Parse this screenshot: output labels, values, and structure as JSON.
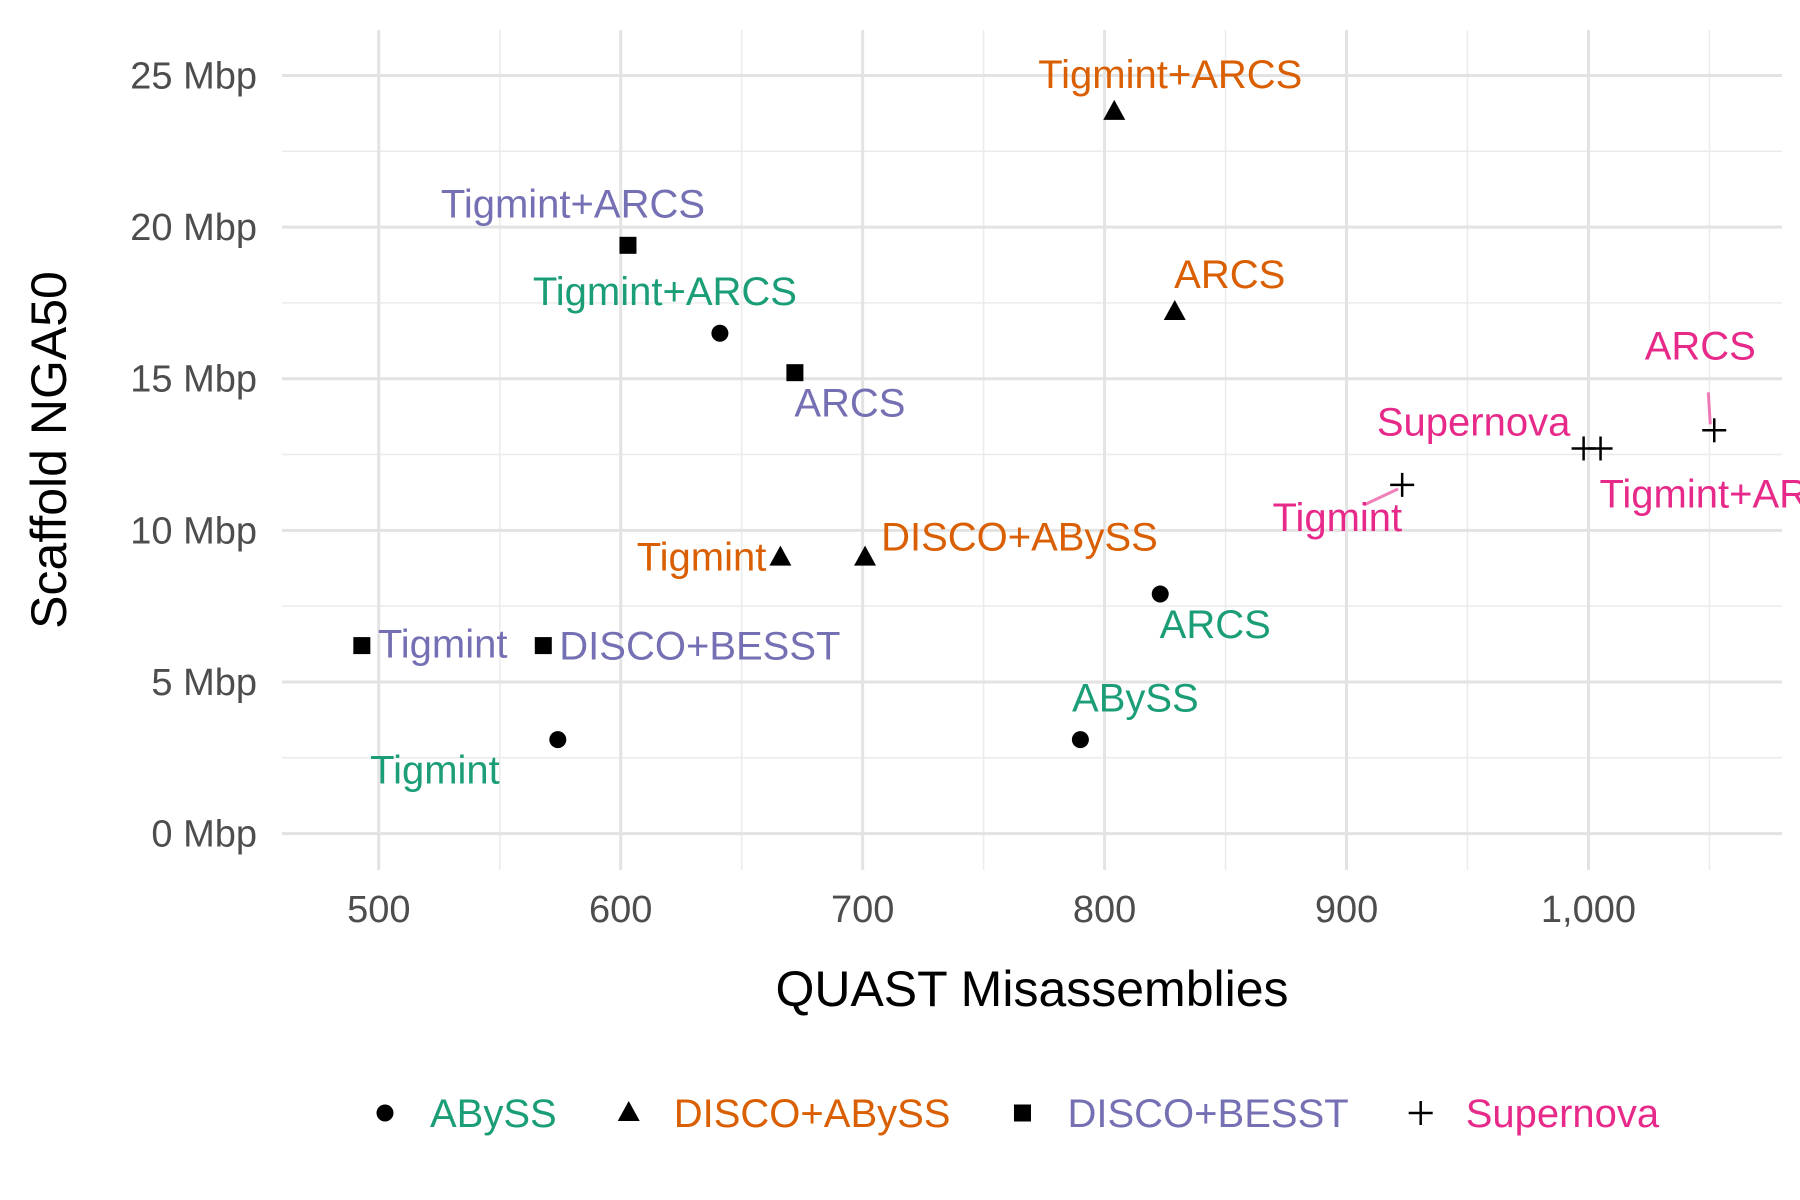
{
  "chart_data": {
    "type": "scatter",
    "xlabel": "QUAST Misassemblies",
    "ylabel": "Scaffold NGA50",
    "xlim": [
      460,
      1080
    ],
    "ylim": [
      -1.2,
      26.5
    ],
    "x_ticks": [
      {
        "value": 500,
        "label": "500"
      },
      {
        "value": 600,
        "label": "600"
      },
      {
        "value": 700,
        "label": "700"
      },
      {
        "value": 800,
        "label": "800"
      },
      {
        "value": 900,
        "label": "900"
      },
      {
        "value": 1000,
        "label": "1,000"
      }
    ],
    "y_ticks": [
      {
        "value": 0,
        "label": "0 Mbp"
      },
      {
        "value": 5,
        "label": "5 Mbp"
      },
      {
        "value": 10,
        "label": "10 Mbp"
      },
      {
        "value": 15,
        "label": "15 Mbp"
      },
      {
        "value": 20,
        "label": "20 Mbp"
      },
      {
        "value": 25,
        "label": "25 Mbp"
      }
    ],
    "grid": true,
    "legend_position": "bottom",
    "series": [
      {
        "name": "ABySS",
        "shape": "circle",
        "color": "#1b9e77",
        "points": [
          {
            "x": 574,
            "y": 3.1,
            "label": "Tigmint"
          },
          {
            "x": 790,
            "y": 3.1,
            "label": "ABySS"
          },
          {
            "x": 641,
            "y": 16.5,
            "label": "Tigmint+ARCS"
          },
          {
            "x": 823,
            "y": 7.9,
            "label": "ARCS"
          }
        ]
      },
      {
        "name": "DISCO+ABySS",
        "shape": "triangle",
        "color": "#d95f02",
        "points": [
          {
            "x": 666,
            "y": 9.1,
            "label": "Tigmint"
          },
          {
            "x": 701,
            "y": 9.1,
            "label": "DISCO+ABySS"
          },
          {
            "x": 804,
            "y": 23.8,
            "label": "Tigmint+ARCS"
          },
          {
            "x": 829,
            "y": 17.2,
            "label": "ARCS"
          }
        ]
      },
      {
        "name": "DISCO+BESST",
        "shape": "square",
        "color": "#7570b3",
        "points": [
          {
            "x": 493,
            "y": 6.2,
            "label": "Tigmint"
          },
          {
            "x": 568,
            "y": 6.2,
            "label": "DISCO+BESST"
          },
          {
            "x": 603,
            "y": 19.4,
            "label": "Tigmint+ARCS"
          },
          {
            "x": 672,
            "y": 15.2,
            "label": "ARCS"
          }
        ]
      },
      {
        "name": "Supernova",
        "shape": "plus",
        "color": "#e7298a",
        "points": [
          {
            "x": 923,
            "y": 11.5,
            "label": "Tigmint"
          },
          {
            "x": 998,
            "y": 12.7,
            "label": "Supernova"
          },
          {
            "x": 1005,
            "y": 12.7,
            "label": "Tigmint+ARCS"
          },
          {
            "x": 1052,
            "y": 13.3,
            "label": "ARCS"
          }
        ]
      }
    ]
  }
}
